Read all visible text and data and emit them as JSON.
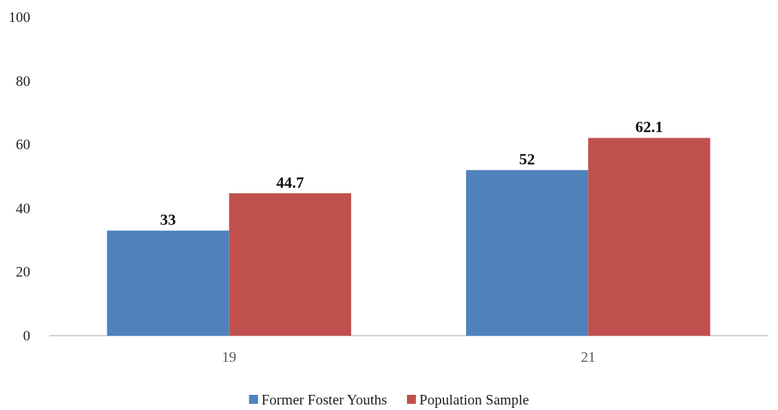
{
  "chart_data": {
    "type": "bar",
    "categories": [
      "19",
      "21"
    ],
    "series": [
      {
        "name": "Former Foster Youths",
        "color": "#4f81bd",
        "values": [
          33,
          52
        ]
      },
      {
        "name": "Population Sample",
        "color": "#c0504d",
        "values": [
          44.7,
          62.1
        ]
      }
    ],
    "ylim": [
      0,
      100
    ],
    "yticks": [
      0,
      20,
      40,
      60,
      80,
      100
    ],
    "grid": false,
    "legend": "bottom",
    "data_labels": true
  }
}
